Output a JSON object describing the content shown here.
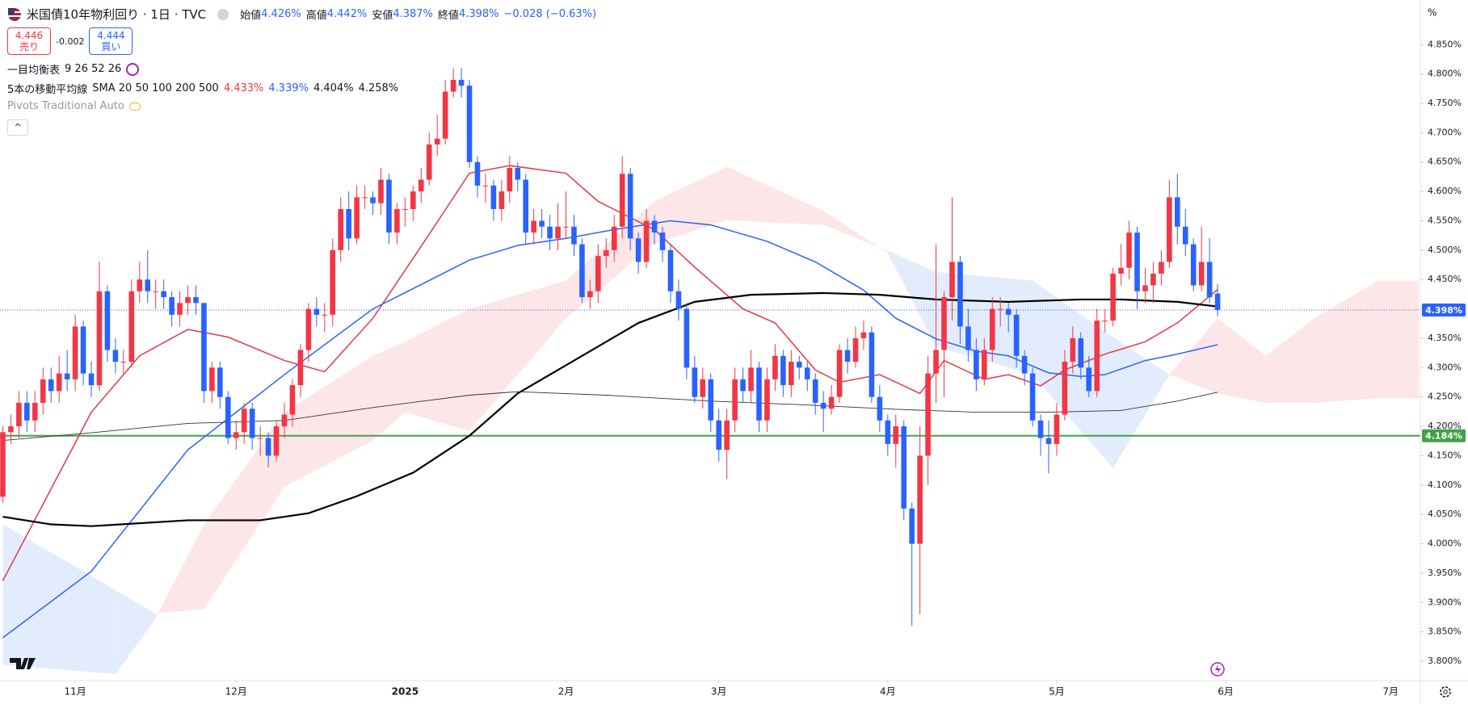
{
  "header": {
    "symbol": "米国債10年物利回り · 1日 · TVC",
    "open_label": "始値",
    "open": "4.426%",
    "high_label": "高値",
    "high": "4.442%",
    "low_label": "安値",
    "low": "4.387%",
    "close_label": "終値",
    "close": "4.398%",
    "change": "−0.028 (−0.63%)"
  },
  "trade": {
    "sell_price": "4.446",
    "sell_label": "売り",
    "spread": "-0.002",
    "buy_price": "4.444",
    "buy_label": "買い"
  },
  "indicators": {
    "ichimoku_name": "一目均衡表",
    "ichimoku_params": "9 26 52 26",
    "ma_name": "5本の移動平均線",
    "ma_params": "SMA 20 50 100 200 500",
    "ma_values": [
      "4.433%",
      "4.339%",
      "4.404%",
      "4.258%"
    ],
    "pivots": "Pivots Traditional Auto"
  },
  "axis_unit": "%",
  "chart_data": {
    "type": "candlestick",
    "up_color": "#f23645",
    "down_color": "#2962ff",
    "xlim": [
      -0.35,
      176.2
    ],
    "ylim": [
      3.767,
      4.926
    ],
    "xticks": [
      {
        "value": 9,
        "label": "11月"
      },
      {
        "value": 29,
        "label": "12月"
      },
      {
        "value": 50,
        "label": "2025"
      },
      {
        "value": 70,
        "label": "2月"
      },
      {
        "value": 89,
        "label": "3月"
      },
      {
        "value": 110,
        "label": "4月"
      },
      {
        "value": 131,
        "label": "5月"
      },
      {
        "value": 152,
        "label": "6月"
      },
      {
        "value": 172.5,
        "label": "7月"
      }
    ],
    "yticks": [
      {
        "value": 3.8,
        "label": "3.800%"
      },
      {
        "value": 3.85,
        "label": "3.850%"
      },
      {
        "value": 3.9,
        "label": "3.900%"
      },
      {
        "value": 3.95,
        "label": "3.950%"
      },
      {
        "value": 4.0,
        "label": "4.000%"
      },
      {
        "value": 4.05,
        "label": "4.050%"
      },
      {
        "value": 4.1,
        "label": "4.100%"
      },
      {
        "value": 4.15,
        "label": "4.150%"
      },
      {
        "value": 4.2,
        "label": "4.200%"
      },
      {
        "value": 4.25,
        "label": "4.250%"
      },
      {
        "value": 4.3,
        "label": "4.300%"
      },
      {
        "value": 4.35,
        "label": "4.350%"
      },
      {
        "value": 4.4,
        "label": "4.400%"
      },
      {
        "value": 4.45,
        "label": "4.450%"
      },
      {
        "value": 4.5,
        "label": "4.500%"
      },
      {
        "value": 4.55,
        "label": "4.550%"
      },
      {
        "value": 4.6,
        "label": "4.600%"
      },
      {
        "value": 4.65,
        "label": "4.650%"
      },
      {
        "value": 4.7,
        "label": "4.700%"
      },
      {
        "value": 4.75,
        "label": "4.750%"
      },
      {
        "value": 4.8,
        "label": "4.800%"
      },
      {
        "value": 4.85,
        "label": "4.850%"
      }
    ],
    "candles": [
      [
        4.08,
        4.2,
        4.07,
        4.19
      ],
      [
        4.19,
        4.22,
        4.17,
        4.2
      ],
      [
        4.2,
        4.26,
        4.18,
        4.24
      ],
      [
        4.24,
        4.26,
        4.19,
        4.21
      ],
      [
        4.21,
        4.26,
        4.19,
        4.24
      ],
      [
        4.24,
        4.3,
        4.22,
        4.28
      ],
      [
        4.28,
        4.3,
        4.24,
        4.26
      ],
      [
        4.26,
        4.32,
        4.24,
        4.29
      ],
      [
        4.29,
        4.33,
        4.26,
        4.28
      ],
      [
        4.28,
        4.39,
        4.26,
        4.37
      ],
      [
        4.37,
        4.38,
        4.27,
        4.29
      ],
      [
        4.29,
        4.31,
        4.25,
        4.27
      ],
      [
        4.27,
        4.48,
        4.26,
        4.43
      ],
      [
        4.43,
        4.44,
        4.31,
        4.33
      ],
      [
        4.33,
        4.35,
        4.29,
        4.31
      ],
      [
        4.31,
        4.33,
        4.29,
        4.31
      ],
      [
        4.31,
        4.45,
        4.3,
        4.43
      ],
      [
        4.43,
        4.48,
        4.41,
        4.45
      ],
      [
        4.45,
        4.5,
        4.41,
        4.43
      ],
      [
        4.43,
        4.45,
        4.4,
        4.43
      ],
      [
        4.43,
        4.45,
        4.4,
        4.42
      ],
      [
        4.42,
        4.43,
        4.37,
        4.39
      ],
      [
        4.39,
        4.43,
        4.37,
        4.41
      ],
      [
        4.41,
        4.44,
        4.39,
        4.42
      ],
      [
        4.42,
        4.44,
        4.39,
        4.41
      ],
      [
        4.41,
        4.41,
        4.24,
        4.26
      ],
      [
        4.26,
        4.31,
        4.24,
        4.3
      ],
      [
        4.3,
        4.31,
        4.23,
        4.25
      ],
      [
        4.25,
        4.26,
        4.17,
        4.18
      ],
      [
        4.18,
        4.21,
        4.16,
        4.19
      ],
      [
        4.19,
        4.24,
        4.17,
        4.23
      ],
      [
        4.23,
        4.24,
        4.16,
        4.18
      ],
      [
        4.18,
        4.2,
        4.15,
        4.18
      ],
      [
        4.18,
        4.19,
        4.13,
        4.15
      ],
      [
        4.15,
        4.21,
        4.14,
        4.2
      ],
      [
        4.2,
        4.24,
        4.18,
        4.22
      ],
      [
        4.22,
        4.28,
        4.2,
        4.27
      ],
      [
        4.27,
        4.34,
        4.25,
        4.33
      ],
      [
        4.33,
        4.41,
        4.31,
        4.4
      ],
      [
        4.4,
        4.42,
        4.37,
        4.39
      ],
      [
        4.39,
        4.41,
        4.36,
        4.39
      ],
      [
        4.39,
        4.52,
        4.37,
        4.5
      ],
      [
        4.5,
        4.59,
        4.48,
        4.57
      ],
      [
        4.57,
        4.6,
        4.5,
        4.52
      ],
      [
        4.52,
        4.61,
        4.51,
        4.59
      ],
      [
        4.59,
        4.61,
        4.57,
        4.59
      ],
      [
        4.59,
        4.6,
        4.56,
        4.58
      ],
      [
        4.58,
        4.64,
        4.56,
        4.62
      ],
      [
        4.62,
        4.63,
        4.51,
        4.53
      ],
      [
        4.53,
        4.58,
        4.51,
        4.57
      ],
      [
        4.57,
        4.59,
        4.54,
        4.57
      ],
      [
        4.57,
        4.61,
        4.55,
        4.6
      ],
      [
        4.6,
        4.64,
        4.58,
        4.62
      ],
      [
        4.62,
        4.7,
        4.61,
        4.68
      ],
      [
        4.68,
        4.73,
        4.66,
        4.69
      ],
      [
        4.69,
        4.79,
        4.68,
        4.77
      ],
      [
        4.77,
        4.81,
        4.76,
        4.79
      ],
      [
        4.79,
        4.81,
        4.76,
        4.78
      ],
      [
        4.78,
        4.79,
        4.64,
        4.65
      ],
      [
        4.65,
        4.66,
        4.59,
        4.61
      ],
      [
        4.61,
        4.63,
        4.58,
        4.61
      ],
      [
        4.61,
        4.62,
        4.55,
        4.57
      ],
      [
        4.57,
        4.62,
        4.55,
        4.6
      ],
      [
        4.6,
        4.66,
        4.58,
        4.64
      ],
      [
        4.64,
        4.65,
        4.6,
        4.62
      ],
      [
        4.62,
        4.63,
        4.51,
        4.53
      ],
      [
        4.53,
        4.57,
        4.51,
        4.55
      ],
      [
        4.55,
        4.57,
        4.52,
        4.54
      ],
      [
        4.54,
        4.56,
        4.5,
        4.52
      ],
      [
        4.52,
        4.58,
        4.5,
        4.54
      ],
      [
        4.54,
        4.6,
        4.52,
        4.54
      ],
      [
        4.54,
        4.56,
        4.49,
        4.51
      ],
      [
        4.51,
        4.52,
        4.41,
        4.42
      ],
      [
        4.42,
        4.45,
        4.4,
        4.43
      ],
      [
        4.43,
        4.51,
        4.41,
        4.49
      ],
      [
        4.49,
        4.52,
        4.47,
        4.5
      ],
      [
        4.5,
        4.56,
        4.48,
        4.54
      ],
      [
        4.54,
        4.66,
        4.52,
        4.63
      ],
      [
        4.63,
        4.64,
        4.5,
        4.52
      ],
      [
        4.52,
        4.53,
        4.46,
        4.48
      ],
      [
        4.48,
        4.57,
        4.47,
        4.55
      ],
      [
        4.55,
        4.56,
        4.51,
        4.53
      ],
      [
        4.53,
        4.54,
        4.48,
        4.5
      ],
      [
        4.5,
        4.51,
        4.41,
        4.43
      ],
      [
        4.43,
        4.45,
        4.38,
        4.4
      ],
      [
        4.4,
        4.41,
        4.28,
        4.3
      ],
      [
        4.3,
        4.32,
        4.24,
        4.25
      ],
      [
        4.25,
        4.3,
        4.23,
        4.28
      ],
      [
        4.28,
        4.29,
        4.19,
        4.21
      ],
      [
        4.21,
        4.23,
        4.14,
        4.16
      ],
      [
        4.16,
        4.23,
        4.11,
        4.21
      ],
      [
        4.21,
        4.3,
        4.19,
        4.28
      ],
      [
        4.28,
        4.3,
        4.24,
        4.26
      ],
      [
        4.26,
        4.33,
        4.24,
        4.3
      ],
      [
        4.3,
        4.31,
        4.19,
        4.21
      ],
      [
        4.21,
        4.3,
        4.19,
        4.28
      ],
      [
        4.28,
        4.34,
        4.26,
        4.32
      ],
      [
        4.32,
        4.33,
        4.25,
        4.27
      ],
      [
        4.27,
        4.33,
        4.25,
        4.31
      ],
      [
        4.31,
        4.32,
        4.28,
        4.3
      ],
      [
        4.3,
        4.31,
        4.26,
        4.28
      ],
      [
        4.28,
        4.29,
        4.22,
        4.24
      ],
      [
        4.24,
        4.26,
        4.19,
        4.23
      ],
      [
        4.23,
        4.27,
        4.22,
        4.25
      ],
      [
        4.25,
        4.34,
        4.24,
        4.33
      ],
      [
        4.33,
        4.35,
        4.29,
        4.31
      ],
      [
        4.31,
        4.37,
        4.3,
        4.35
      ],
      [
        4.35,
        4.38,
        4.33,
        4.36
      ],
      [
        4.36,
        4.37,
        4.24,
        4.25
      ],
      [
        4.25,
        4.27,
        4.19,
        4.21
      ],
      [
        4.21,
        4.22,
        4.15,
        4.17
      ],
      [
        4.17,
        4.22,
        4.13,
        4.2
      ],
      [
        4.2,
        4.21,
        4.04,
        4.06
      ],
      [
        4.06,
        4.07,
        3.86,
        4.0
      ],
      [
        4.0,
        4.2,
        3.88,
        4.15
      ],
      [
        4.15,
        4.32,
        4.1,
        4.29
      ],
      [
        4.29,
        4.51,
        4.24,
        4.33
      ],
      [
        4.33,
        4.43,
        4.25,
        4.42
      ],
      [
        4.42,
        4.59,
        4.38,
        4.48
      ],
      [
        4.48,
        4.49,
        4.34,
        4.37
      ],
      [
        4.37,
        4.4,
        4.31,
        4.33
      ],
      [
        4.33,
        4.35,
        4.26,
        4.28
      ],
      [
        4.28,
        4.35,
        4.27,
        4.33
      ],
      [
        4.33,
        4.42,
        4.31,
        4.4
      ],
      [
        4.4,
        4.42,
        4.37,
        4.4
      ],
      [
        4.4,
        4.41,
        4.36,
        4.39
      ],
      [
        4.39,
        4.4,
        4.3,
        4.32
      ],
      [
        4.32,
        4.33,
        4.27,
        4.29
      ],
      [
        4.29,
        4.3,
        4.2,
        4.21
      ],
      [
        4.21,
        4.22,
        4.15,
        4.18
      ],
      [
        4.18,
        4.21,
        4.12,
        4.17
      ],
      [
        4.17,
        4.24,
        4.15,
        4.22
      ],
      [
        4.22,
        4.33,
        4.21,
        4.31
      ],
      [
        4.31,
        4.37,
        4.29,
        4.35
      ],
      [
        4.35,
        4.36,
        4.28,
        4.3
      ],
      [
        4.3,
        4.32,
        4.25,
        4.26
      ],
      [
        4.26,
        4.4,
        4.25,
        4.38
      ],
      [
        4.38,
        4.4,
        4.36,
        4.38
      ],
      [
        4.38,
        4.47,
        4.37,
        4.46
      ],
      [
        4.46,
        4.51,
        4.44,
        4.47
      ],
      [
        4.47,
        4.55,
        4.45,
        4.53
      ],
      [
        4.53,
        4.54,
        4.4,
        4.43
      ],
      [
        4.43,
        4.47,
        4.41,
        4.44
      ],
      [
        4.44,
        4.48,
        4.41,
        4.46
      ],
      [
        4.46,
        4.5,
        4.44,
        4.48
      ],
      [
        4.48,
        4.62,
        4.47,
        4.59
      ],
      [
        4.59,
        4.63,
        4.51,
        4.54
      ],
      [
        4.54,
        4.57,
        4.49,
        4.51
      ],
      [
        4.51,
        4.52,
        4.43,
        4.44
      ],
      [
        4.44,
        4.54,
        4.43,
        4.48
      ],
      [
        4.48,
        4.52,
        4.41,
        4.42
      ],
      [
        4.426,
        4.442,
        4.387,
        4.398
      ]
    ],
    "cloud": {
      "up_color": "#fde6e8",
      "down_color": "#e2ecfc",
      "x": [
        0,
        14,
        19,
        25,
        35,
        46,
        50,
        58,
        70,
        81,
        90,
        102,
        110,
        116,
        128,
        138,
        145,
        151,
        157,
        163,
        171,
        176
      ],
      "span_a": [
        3.794,
        3.778,
        3.873,
        4.033,
        4.224,
        4.32,
        4.344,
        4.4,
        4.448,
        4.583,
        4.642,
        4.567,
        4.495,
        4.336,
        4.288,
        4.129,
        4.288,
        4.384,
        4.32,
        4.384,
        4.448,
        4.448
      ],
      "span_b": [
        4.033,
        3.921,
        3.881,
        3.889,
        4.097,
        4.176,
        4.224,
        4.192,
        4.384,
        4.511,
        4.551,
        4.543,
        4.499,
        4.463,
        4.448,
        4.352,
        4.288,
        4.256,
        4.24,
        4.24,
        4.248,
        4.248
      ]
    },
    "lines": [
      {
        "color": "#e53945",
        "width": 1.5,
        "x": [
          0,
          11,
          17,
          23,
          28,
          35,
          40,
          46,
          53,
          58,
          63,
          70,
          74,
          81,
          86,
          92,
          96,
          101,
          104,
          109,
          114,
          117,
          122,
          125,
          129,
          132,
          137,
          142,
          146,
          151
        ],
        "values": [
          3.937,
          4.224,
          4.32,
          4.365,
          4.352,
          4.312,
          4.293,
          4.384,
          4.527,
          4.631,
          4.644,
          4.631,
          4.583,
          4.535,
          4.471,
          4.4,
          4.376,
          4.296,
          4.275,
          4.288,
          4.256,
          4.312,
          4.28,
          4.288,
          4.269,
          4.296,
          4.323,
          4.344,
          4.376,
          4.433
        ]
      },
      {
        "color": "#2962ff",
        "width": 1.5,
        "x": [
          0,
          11,
          23,
          29,
          35,
          46,
          58,
          64,
          70,
          76,
          83,
          88,
          95,
          101,
          107,
          111,
          116,
          121,
          125,
          130,
          134,
          137,
          142,
          146,
          151
        ],
        "values": [
          3.84,
          3.953,
          4.16,
          4.224,
          4.288,
          4.4,
          4.483,
          4.508,
          4.52,
          4.535,
          4.55,
          4.543,
          4.515,
          4.48,
          4.432,
          4.384,
          4.349,
          4.328,
          4.32,
          4.291,
          4.285,
          4.288,
          4.312,
          4.323,
          4.339
        ]
      },
      {
        "color": "#000000",
        "width": 2.2,
        "x": [
          0,
          6,
          11,
          23,
          32,
          38,
          44,
          51,
          58,
          64,
          72,
          79,
          86,
          93,
          102,
          109,
          116,
          125,
          134,
          139,
          146,
          151
        ],
        "values": [
          4.046,
          4.033,
          4.03,
          4.04,
          4.04,
          4.052,
          4.081,
          4.121,
          4.184,
          4.256,
          4.32,
          4.376,
          4.412,
          4.424,
          4.427,
          4.424,
          4.416,
          4.412,
          4.416,
          4.416,
          4.412,
          4.404
        ]
      },
      {
        "color": "#333333",
        "width": 0.9,
        "x": [
          0,
          11,
          23,
          35,
          46,
          58,
          64,
          75,
          88,
          99,
          111,
          121,
          130,
          139,
          146,
          151
        ],
        "values": [
          4.176,
          4.189,
          4.205,
          4.21,
          4.232,
          4.253,
          4.259,
          4.253,
          4.243,
          4.237,
          4.229,
          4.224,
          4.224,
          4.227,
          4.243,
          4.258
        ]
      }
    ],
    "hline": {
      "value": 4.184,
      "label": "4.184%",
      "color": "#43a047"
    },
    "last_price": {
      "value": 4.398,
      "label": "4.398%",
      "color": "#2962ff"
    }
  }
}
